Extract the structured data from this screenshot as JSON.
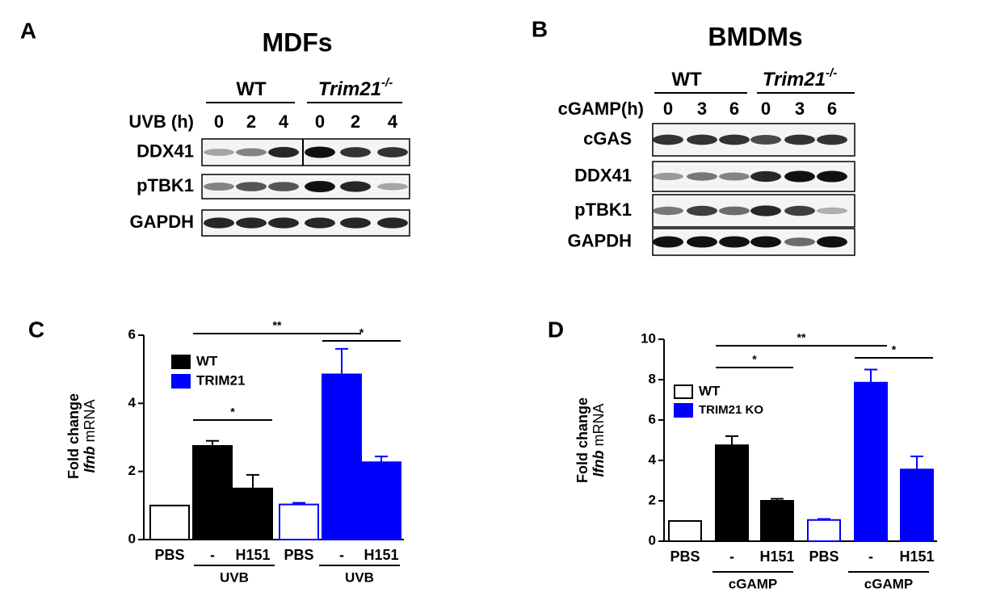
{
  "panels": [
    {
      "letter": "A",
      "title": "MDFs",
      "genotypes": [
        "WT",
        "Trim21"
      ],
      "knockout_sup": "-/-",
      "time_label": "UVB (h)",
      "times": [
        "0",
        "2",
        "4",
        "0",
        "2",
        "4"
      ],
      "rows": [
        "DDX41",
        "pTBK1",
        "GAPDH"
      ]
    },
    {
      "letter": "B",
      "title": "BMDMs",
      "genotypes": [
        "WT",
        "Trim21"
      ],
      "knockout_sup": "-/-",
      "time_label": "cGAMP(h)",
      "times": [
        "0",
        "3",
        "6",
        "0",
        "3",
        "6"
      ],
      "rows": [
        "cGAS",
        "DDX41",
        "pTBK1",
        "GAPDH"
      ]
    }
  ],
  "chart_data": [
    {
      "type": "bar",
      "letter": "C",
      "y_label": "Fold change",
      "y_label_gene": "Ifnb",
      "y_label_unit": "mRNA",
      "categories": [
        "PBS",
        "-",
        "H151",
        "PBS",
        "-",
        "H151"
      ],
      "filled": [
        false,
        true,
        true,
        false,
        true,
        true
      ],
      "series": [
        {
          "name": "WT",
          "color": "#000000",
          "legend_filled": true,
          "values": [
            1.0,
            2.75,
            1.5,
            null,
            null,
            null
          ],
          "errors": [
            null,
            0.15,
            0.4,
            null,
            null,
            null
          ]
        },
        {
          "name": "TRIM21",
          "color": "#0000ff",
          "legend_filled": true,
          "values": [
            null,
            null,
            null,
            1.03,
            4.85,
            2.27
          ],
          "errors": [
            null,
            null,
            null,
            0.05,
            0.75,
            0.17
          ]
        }
      ],
      "group_labels": [
        "UVB",
        "UVB"
      ],
      "annotations": [
        "**",
        "*",
        "*"
      ],
      "ylim": [
        0,
        6
      ],
      "yticks": [
        0,
        2,
        4,
        6
      ]
    },
    {
      "type": "bar",
      "letter": "D",
      "y_label": "Fold change",
      "y_label_gene": "Ifnb",
      "y_label_unit": "mRNA",
      "categories": [
        "PBS",
        "-",
        "H151",
        "PBS",
        "-",
        "H151"
      ],
      "filled": [
        false,
        true,
        true,
        false,
        true,
        true
      ],
      "series": [
        {
          "name": "WT",
          "color": "#000000",
          "legend_filled": false,
          "values": [
            1.0,
            4.75,
            2.0,
            null,
            null,
            null
          ],
          "errors": [
            null,
            0.45,
            0.1,
            null,
            null,
            null
          ]
        },
        {
          "name": "TRIM21 KO",
          "color": "#0000ff",
          "legend_filled": true,
          "values": [
            null,
            null,
            null,
            1.05,
            7.85,
            3.55
          ],
          "errors": [
            null,
            null,
            null,
            0.05,
            0.65,
            0.65
          ]
        }
      ],
      "group_labels": [
        "cGAMP",
        "cGAMP"
      ],
      "annotations": [
        "**",
        "*",
        "*"
      ],
      "ylim": [
        0,
        10
      ],
      "yticks": [
        0,
        2,
        4,
        6,
        8,
        10
      ]
    }
  ]
}
